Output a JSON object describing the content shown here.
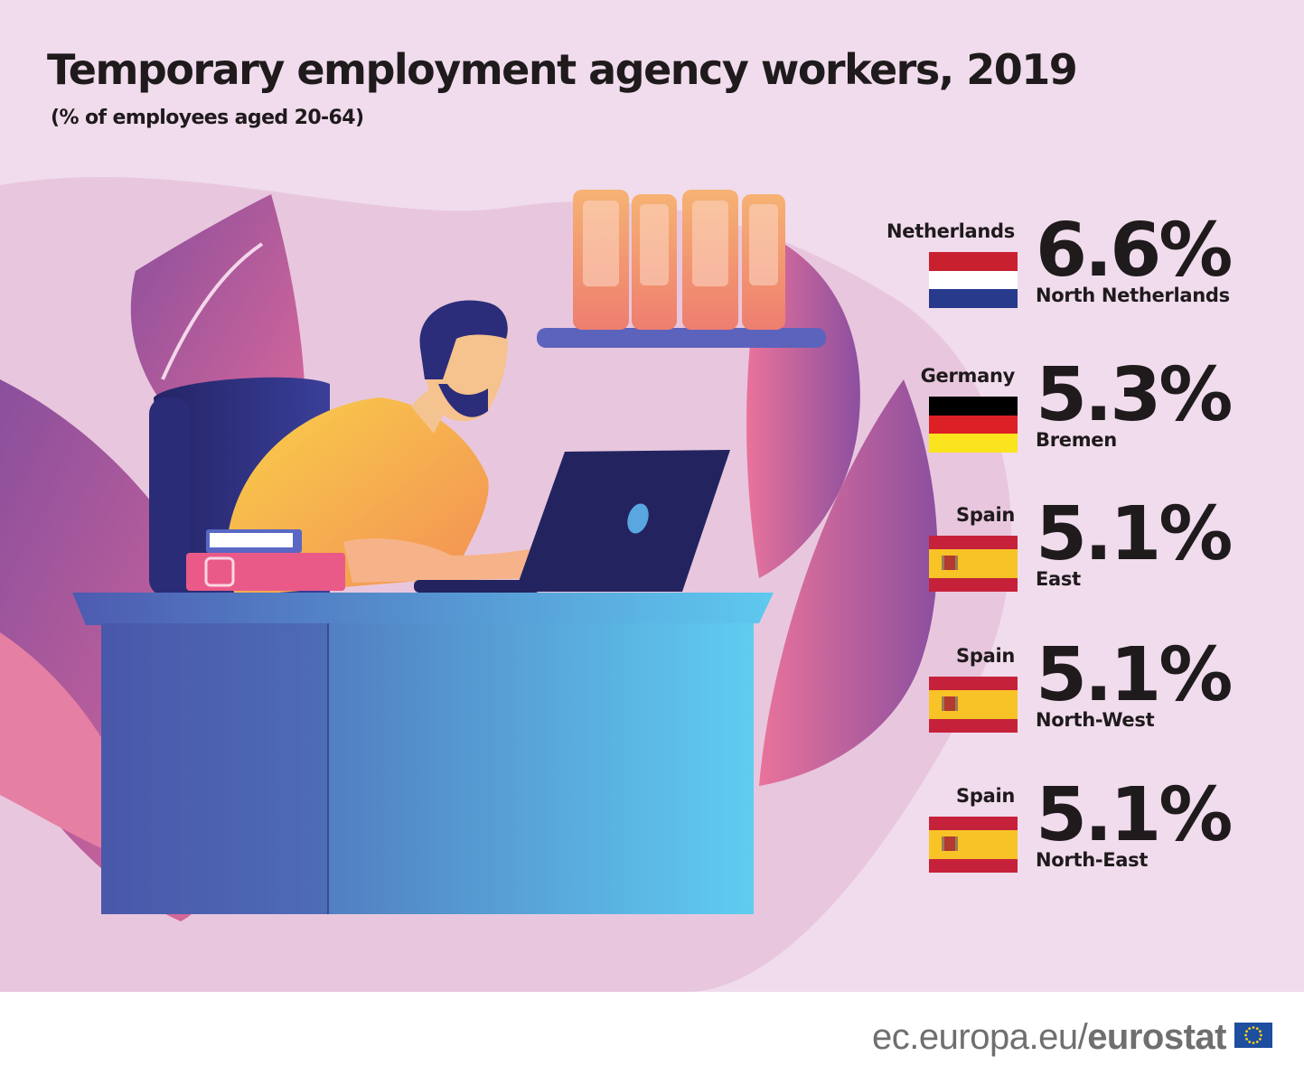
{
  "title": "Temporary employment agency workers, 2019",
  "subtitle": "(% of employees aged 20-64)",
  "chart_data": {
    "type": "table",
    "title": "Temporary employment agency workers, 2019",
    "subtitle": "(% of employees aged 20-64)",
    "entries": [
      {
        "country": "Netherlands",
        "region": "North Netherlands",
        "value": 6.6,
        "value_label": "6.6%",
        "flag": "netherlands-flag"
      },
      {
        "country": "Germany",
        "region": "Bremen",
        "value": 5.3,
        "value_label": "5.3%",
        "flag": "germany-flag"
      },
      {
        "country": "Spain",
        "region": "East",
        "value": 5.1,
        "value_label": "5.1%",
        "flag": "spain-flag"
      },
      {
        "country": "Spain",
        "region": "North-West",
        "value": 5.1,
        "value_label": "5.1%",
        "flag": "spain-flag"
      },
      {
        "country": "Spain",
        "region": "North-East",
        "value": 5.1,
        "value_label": "5.1%",
        "flag": "spain-flag"
      }
    ]
  },
  "footer": {
    "source_prefix": "ec.europa.eu/",
    "source_brand": "eurostat"
  },
  "colors": {
    "background": "#f0dcec",
    "text": "#1f1a1c",
    "footer_text": "#6f6f6f",
    "netherlands": [
      "#c8202e",
      "#ffffff",
      "#273a8c"
    ],
    "germany": [
      "#000000",
      "#dd1f26",
      "#fae41e"
    ],
    "spain": [
      "#c6213a",
      "#f7c326",
      "#c6213a"
    ],
    "eu_blue": "#1d4e9f"
  }
}
